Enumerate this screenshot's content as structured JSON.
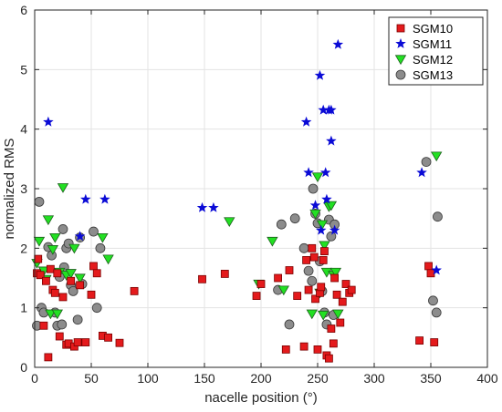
{
  "chart_data": {
    "type": "scatter",
    "title": "",
    "xlabel": "nacelle position (°)",
    "ylabel": "normalized RMS",
    "xlim": [
      0,
      400
    ],
    "ylim": [
      0,
      6
    ],
    "xticks": [
      0,
      50,
      100,
      150,
      200,
      250,
      300,
      350,
      400
    ],
    "yticks": [
      0,
      1,
      2,
      3,
      4,
      5,
      6
    ],
    "grid": true,
    "legend_position": "top-right",
    "series": [
      {
        "name": "SGM10",
        "marker": "square",
        "color": "#e41a1c",
        "x": [
          2,
          3,
          5,
          8,
          10,
          12,
          14,
          16,
          18,
          20,
          22,
          25,
          28,
          30,
          32,
          35,
          38,
          40,
          45,
          50,
          52,
          55,
          60,
          65,
          75,
          88,
          148,
          168,
          196,
          200,
          215,
          222,
          225,
          232,
          238,
          240,
          242,
          245,
          247,
          248,
          250,
          252,
          253,
          255,
          256,
          258,
          260,
          262,
          264,
          265,
          267,
          270,
          272,
          275,
          278,
          280,
          340,
          348,
          350,
          353
        ],
        "y": [
          1.58,
          1.82,
          1.55,
          0.7,
          1.45,
          0.17,
          1.65,
          1.3,
          1.25,
          1.58,
          0.52,
          1.18,
          0.38,
          0.4,
          1.45,
          0.35,
          0.42,
          1.38,
          0.42,
          1.22,
          1.7,
          1.58,
          0.53,
          0.5,
          0.41,
          1.28,
          1.48,
          1.57,
          1.2,
          1.4,
          1.5,
          0.3,
          1.63,
          1.2,
          0.35,
          1.8,
          1.3,
          2.0,
          1.85,
          1.15,
          0.3,
          1.25,
          1.35,
          1.8,
          1.95,
          0.2,
          0.15,
          0.65,
          0.4,
          1.5,
          1.22,
          0.75,
          1.1,
          1.4,
          1.25,
          1.3,
          0.45,
          1.7,
          1.58,
          0.42
        ]
      },
      {
        "name": "SGM11",
        "marker": "star",
        "color": "#0a0ad6",
        "x": [
          12,
          40,
          45,
          62,
          148,
          158,
          240,
          242,
          248,
          252,
          253,
          255,
          257,
          258,
          260,
          262,
          262,
          265,
          268,
          342,
          355
        ],
        "y": [
          4.12,
          2.2,
          2.82,
          2.82,
          2.68,
          2.68,
          4.12,
          3.27,
          2.72,
          4.9,
          2.3,
          4.32,
          3.27,
          2.82,
          4.32,
          4.32,
          3.8,
          2.3,
          5.42,
          3.27,
          1.63
        ]
      },
      {
        "name": "SGM12",
        "marker": "triangle-down",
        "color": "#22e022",
        "x": [
          2,
          4,
          8,
          10,
          12,
          14,
          16,
          18,
          20,
          22,
          25,
          28,
          32,
          35,
          40,
          60,
          65,
          172,
          198,
          210,
          220,
          245,
          248,
          250,
          252,
          254,
          255,
          256,
          258,
          260,
          262,
          264,
          266,
          268,
          355
        ],
        "y": [
          1.75,
          2.12,
          1.62,
          1.48,
          2.48,
          0.9,
          1.98,
          2.18,
          0.9,
          1.6,
          3.02,
          1.55,
          1.58,
          2.0,
          1.5,
          2.18,
          1.82,
          2.45,
          1.4,
          2.12,
          1.3,
          0.9,
          2.58,
          3.2,
          1.25,
          2.4,
          0.88,
          2.05,
          1.6,
          2.7,
          2.72,
          1.55,
          1.6,
          0.9,
          3.55
        ]
      },
      {
        "name": "SGM13",
        "marker": "circle",
        "color": "#8c8c8c",
        "x": [
          2,
          4,
          6,
          8,
          12,
          15,
          18,
          20,
          22,
          24,
          25,
          26,
          28,
          30,
          32,
          34,
          38,
          40,
          42,
          52,
          55,
          58,
          215,
          218,
          225,
          230,
          238,
          242,
          245,
          246,
          248,
          250,
          252,
          254,
          256,
          258,
          260,
          262,
          264,
          265,
          346,
          352,
          355,
          356
        ],
        "y": [
          0.7,
          2.78,
          1.0,
          0.92,
          2.02,
          1.88,
          0.92,
          0.7,
          1.52,
          0.72,
          2.32,
          1.68,
          2.0,
          2.08,
          1.38,
          1.28,
          0.8,
          2.18,
          1.4,
          2.28,
          1.0,
          2.0,
          1.3,
          2.4,
          0.72,
          2.5,
          2.0,
          1.62,
          1.45,
          3.0,
          2.58,
          2.42,
          1.78,
          1.28,
          0.92,
          0.72,
          2.48,
          2.2,
          0.88,
          2.4,
          3.45,
          1.12,
          0.92,
          2.53
        ]
      }
    ]
  }
}
